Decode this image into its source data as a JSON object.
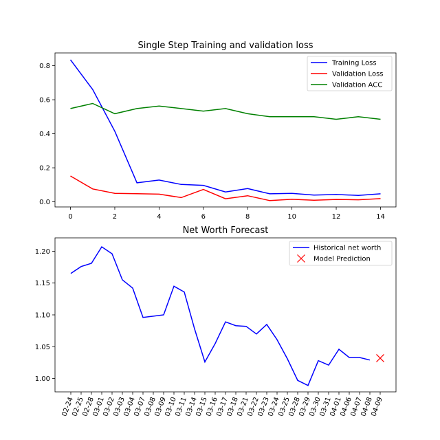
{
  "chart_data": [
    {
      "type": "line",
      "title": "Single Step Training and validation loss",
      "xlabel": "",
      "ylabel": "",
      "xlim": [
        -0.7,
        14.7
      ],
      "ylim": [
        -0.03,
        0.875
      ],
      "xticks": [
        "0",
        "2",
        "4",
        "6",
        "8",
        "10",
        "12",
        "14"
      ],
      "yticks": [
        "0.0",
        "0.2",
        "0.4",
        "0.6",
        "0.8"
      ],
      "grid": false,
      "legend_position": "top-right",
      "x": [
        0,
        1,
        2,
        3,
        4,
        5,
        6,
        7,
        8,
        9,
        10,
        11,
        12,
        13,
        14
      ],
      "series": [
        {
          "name": "Training Loss",
          "color": "#0000ff",
          "values": [
            0.835,
            0.66,
            0.415,
            0.112,
            0.128,
            0.102,
            0.097,
            0.058,
            0.078,
            0.047,
            0.05,
            0.04,
            0.043,
            0.038,
            0.047
          ]
        },
        {
          "name": "Validation Loss",
          "color": "#ff0000",
          "values": [
            0.152,
            0.076,
            0.05,
            0.048,
            0.045,
            0.025,
            0.073,
            0.018,
            0.036,
            0.007,
            0.015,
            0.009,
            0.014,
            0.012,
            0.019
          ]
        },
        {
          "name": "Validation ACC",
          "color": "#008000",
          "values": [
            0.548,
            0.578,
            0.518,
            0.548,
            0.563,
            0.548,
            0.533,
            0.548,
            0.518,
            0.5,
            0.5,
            0.5,
            0.485,
            0.5,
            0.485
          ]
        }
      ]
    },
    {
      "type": "line",
      "title": "Net Worth Forecast",
      "xlabel": "",
      "ylabel": "",
      "ylim": [
        0.979,
        1.221
      ],
      "yticks": [
        "1.00",
        "1.05",
        "1.10",
        "1.15",
        "1.20"
      ],
      "grid": false,
      "legend_position": "top-right",
      "categories": [
        "02-24",
        "02-25",
        "02-28",
        "03-01",
        "03-02",
        "03-03",
        "03-04",
        "03-07",
        "03-08",
        "03-09",
        "03-10",
        "03-11",
        "03-14",
        "03-15",
        "03-16",
        "03-17",
        "03-18",
        "03-21",
        "03-22",
        "03-23",
        "03-24",
        "03-25",
        "03-28",
        "03-29",
        "03-30",
        "03-31",
        "04-01",
        "04-06",
        "04-07",
        "04-08",
        "04-09"
      ],
      "series": [
        {
          "name": "Historical net worth",
          "color": "#0000ff",
          "values": [
            1.165,
            1.176,
            1.181,
            1.207,
            1.196,
            1.155,
            1.142,
            1.096,
            1.098,
            1.1,
            1.145,
            1.136,
            1.078,
            1.026,
            1.055,
            1.089,
            1.083,
            1.082,
            1.07,
            1.085,
            1.061,
            1.031,
            0.997,
            0.989,
            1.028,
            1.021,
            1.046,
            1.033,
            1.033,
            1.029,
            null
          ]
        },
        {
          "name": "Model Prediction",
          "color": "#ff0000",
          "marker": "x",
          "values": [
            null,
            null,
            null,
            null,
            null,
            null,
            null,
            null,
            null,
            null,
            null,
            null,
            null,
            null,
            null,
            null,
            null,
            null,
            null,
            null,
            null,
            null,
            null,
            null,
            null,
            null,
            null,
            null,
            null,
            null,
            1.032
          ]
        }
      ]
    }
  ]
}
